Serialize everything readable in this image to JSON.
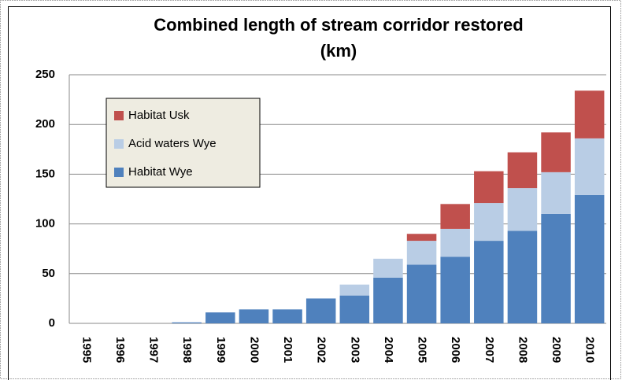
{
  "chart_data": {
    "type": "stacked-bar",
    "title": [
      "Combined  length of stream corridor restored",
      "(km)"
    ],
    "categories": [
      "1995",
      "1996",
      "1997",
      "1998",
      "1999",
      "2000",
      "2001",
      "2002",
      "2003",
      "2004",
      "2005",
      "2006",
      "2007",
      "2008",
      "2009",
      "2010"
    ],
    "series": [
      {
        "name": "Habitat Wye",
        "color": "#4f81bd",
        "values": [
          0,
          0,
          0,
          1,
          11,
          14,
          14,
          25,
          28,
          46,
          59,
          67,
          83,
          93,
          110,
          129
        ]
      },
      {
        "name": "Acid waters Wye",
        "color": "#b9cde5",
        "values": [
          0,
          0,
          0,
          0,
          0,
          0,
          0,
          0,
          11,
          19,
          24,
          28,
          38,
          43,
          42,
          57
        ]
      },
      {
        "name": "Habitat Usk",
        "color": "#c0504d",
        "values": [
          0,
          0,
          0,
          0,
          0,
          0,
          0,
          0,
          0,
          0,
          7,
          25,
          32,
          36,
          40,
          48
        ]
      }
    ],
    "ylim": [
      0,
      250
    ],
    "yticks": [
      0,
      50,
      100,
      150,
      200,
      250
    ],
    "grid": true,
    "legend": "upper left"
  }
}
